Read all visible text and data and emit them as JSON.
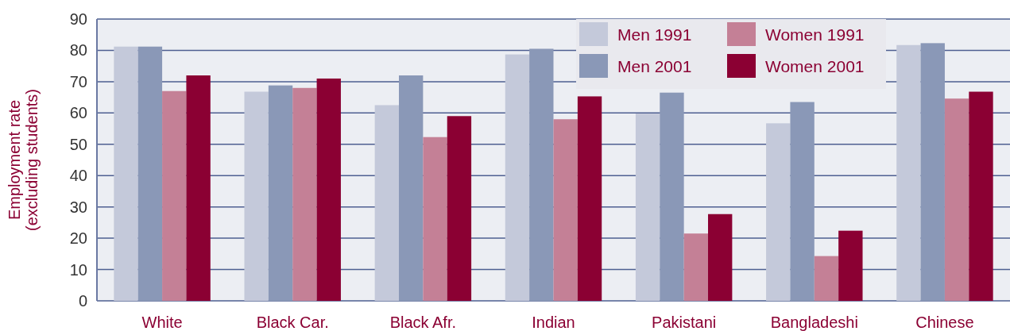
{
  "chart_data": {
    "type": "bar",
    "ylabel": "Employment rate (excluding students)",
    "categories": [
      "White",
      "Black Car.",
      "Black Afr.",
      "Indian",
      "Pakistani",
      "Bangladeshi",
      "Chinese"
    ],
    "series": [
      {
        "name": "Men 1991",
        "color": "#c4c9da",
        "values": [
          81.2,
          66.8,
          62.5,
          78.7,
          59.8,
          56.7,
          81.7
        ]
      },
      {
        "name": "Men 2001",
        "color": "#8a98b7",
        "values": [
          81.2,
          68.8,
          72,
          80.5,
          66.5,
          63.5,
          82.3
        ]
      },
      {
        "name": "Women 1991",
        "color": "#c48096",
        "values": [
          67,
          68,
          52.3,
          58,
          21.5,
          14.3,
          64.6
        ]
      },
      {
        "name": "Women 2001",
        "color": "#8b0033",
        "values": [
          72,
          71,
          59,
          65.3,
          27.7,
          22.4,
          66.8
        ]
      }
    ],
    "ylim": [
      0,
      90
    ],
    "yticks": [
      0,
      10,
      20,
      30,
      40,
      50,
      60,
      70,
      80,
      90
    ],
    "grid": "y",
    "legend": "top right"
  }
}
